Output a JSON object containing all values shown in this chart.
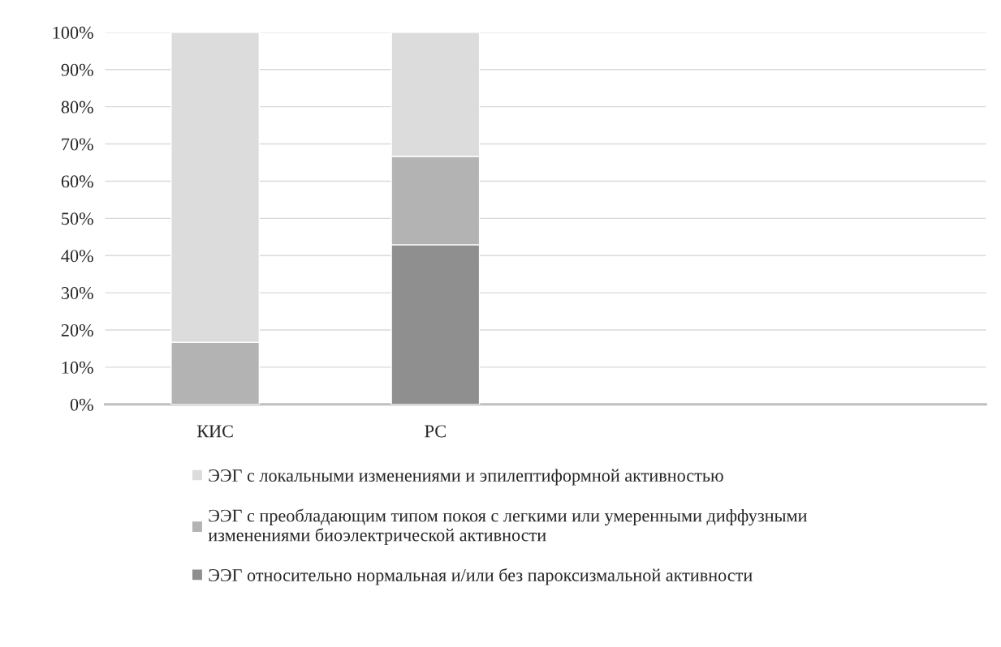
{
  "chart_data": {
    "type": "bar",
    "stacked": true,
    "categories": [
      "КИС",
      "РС",
      null,
      null
    ],
    "series": [
      {
        "name": "ЭЭГ относительно нормальная и/или без пароксизмальной активности",
        "color": "#8f8f8f",
        "values": [
          0,
          42.9,
          null,
          null
        ]
      },
      {
        "name": "ЭЭГ с преобладающим типом покоя с легкими или умеренными диффузными изменениями биоэлектрической активности",
        "color": "#b3b3b3",
        "values": [
          16.7,
          23.8,
          null,
          null
        ]
      },
      {
        "name": "ЭЭГ с локальными изменениями и эпилептиформной активностью",
        "color": "#dcdcdc",
        "values": [
          83.3,
          33.3,
          null,
          null
        ]
      }
    ],
    "ylim": [
      0,
      100
    ],
    "yticks": [
      {
        "value": 0,
        "label": "0%"
      },
      {
        "value": 10,
        "label": "10%"
      },
      {
        "value": 20,
        "label": "20%"
      },
      {
        "value": 30,
        "label": "30%"
      },
      {
        "value": 40,
        "label": "40%"
      },
      {
        "value": 50,
        "label": "50%"
      },
      {
        "value": 60,
        "label": "60%"
      },
      {
        "value": 70,
        "label": "70%"
      },
      {
        "value": 80,
        "label": "80%"
      },
      {
        "value": 90,
        "label": "90%"
      },
      {
        "value": 100,
        "label": "100%"
      }
    ],
    "grid": "y",
    "legend": "bottom"
  }
}
